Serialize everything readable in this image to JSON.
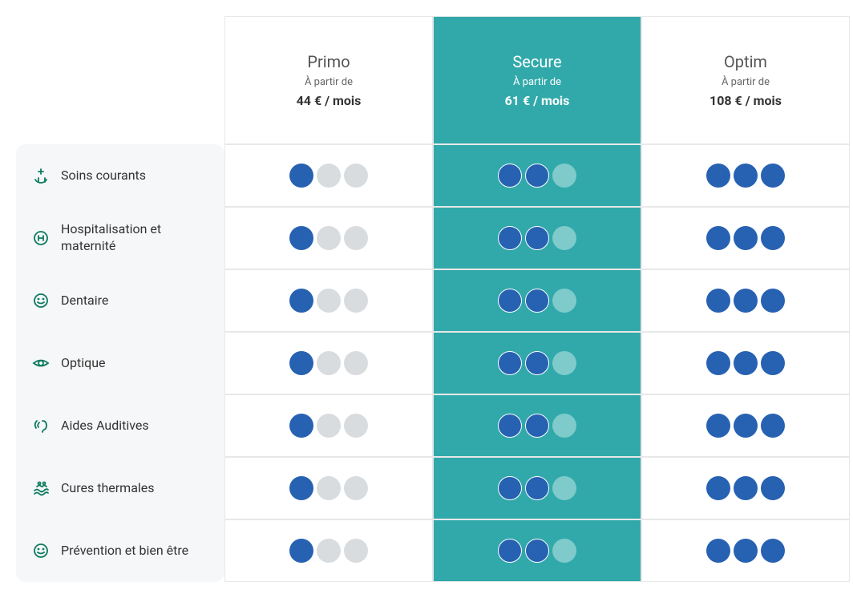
{
  "colors": {
    "highlight_bg": "#31a9aa",
    "dot_filled": "#2761b2",
    "dot_empty": "#d9dcdf",
    "dot_empty_highlight": "#7fcacb",
    "label_bg": "#f5f7f8",
    "icon_color": "#0d7a5f"
  },
  "max_dots": 3,
  "plans": [
    {
      "name": "Primo",
      "from_label": "À partir de",
      "price": "44 € / mois",
      "highlighted": false,
      "rating": 1
    },
    {
      "name": "Secure",
      "from_label": "À partir de",
      "price": "61 € / mois",
      "highlighted": true,
      "rating": 2
    },
    {
      "name": "Optim",
      "from_label": "À partir de",
      "price": "108 € / mois",
      "highlighted": false,
      "rating": 3
    }
  ],
  "features": [
    {
      "icon": "hands-medical",
      "label": "Soins courants"
    },
    {
      "icon": "hospital",
      "label": "Hospitalisation et maternité"
    },
    {
      "icon": "smile",
      "label": "Dentaire"
    },
    {
      "icon": "eye",
      "label": "Optique"
    },
    {
      "icon": "ear",
      "label": "Aides Auditives"
    },
    {
      "icon": "waves",
      "label": "Cures thermales"
    },
    {
      "icon": "smile",
      "label": "Prévention et bien être"
    }
  ]
}
